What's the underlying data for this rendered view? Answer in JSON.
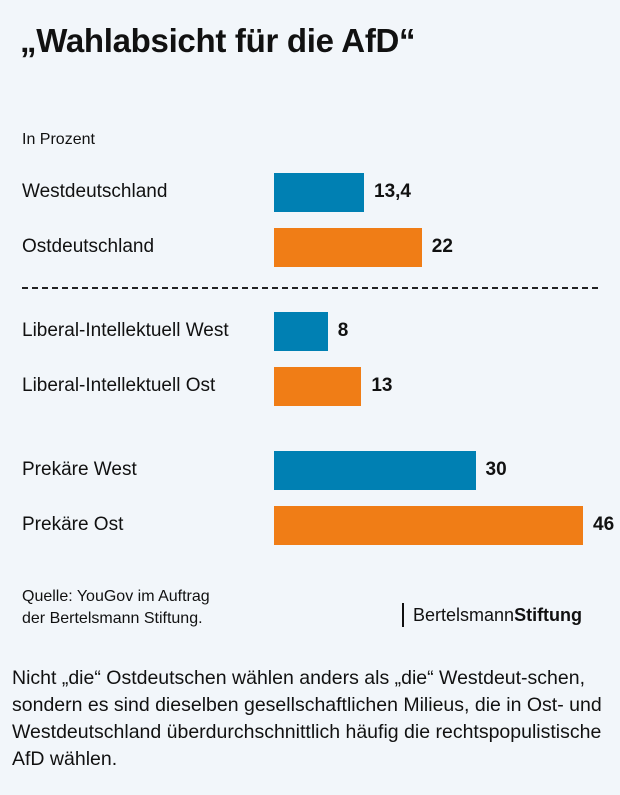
{
  "title": "„Wahlabsicht für die AfD“",
  "subtitle": "In Prozent",
  "colors": {
    "west": "#0080b3",
    "ost": "#f07d16",
    "background": "#f2f6fa"
  },
  "chart_data": {
    "type": "bar",
    "orientation": "horizontal",
    "title": "„Wahlabsicht für die AfD“",
    "xlabel": "",
    "ylabel": "In Prozent",
    "grid": false,
    "categories": [
      "Westdeutschland",
      "Ostdeutschland",
      "Liberal-Intellektuell West",
      "Liberal-Intellektuell Ost",
      "Prekäre West",
      "Prekäre Ost"
    ],
    "values": [
      13.4,
      22,
      8,
      13,
      30,
      46
    ],
    "value_labels": [
      "13,4",
      "22",
      "8",
      "13",
      "30",
      "46"
    ],
    "series_color_key": [
      "west",
      "ost",
      "west",
      "ost",
      "west",
      "ost"
    ],
    "xlim": [
      0,
      46
    ]
  },
  "source": {
    "line1": "Quelle: YouGov im Auftrag",
    "line2": "der Bertelsmann Stiftung."
  },
  "logo": {
    "part1": "Bertelsmann",
    "part2": "Stiftung"
  },
  "caption": "Nicht „die“ Ostdeutschen wählen anders als „die“ Westdeut-schen, sondern es sind dieselben gesellschaftlichen Milieus, die in Ost- und Westdeutschland überdurchschnittlich häufig die rechtspopulistische AfD wählen."
}
